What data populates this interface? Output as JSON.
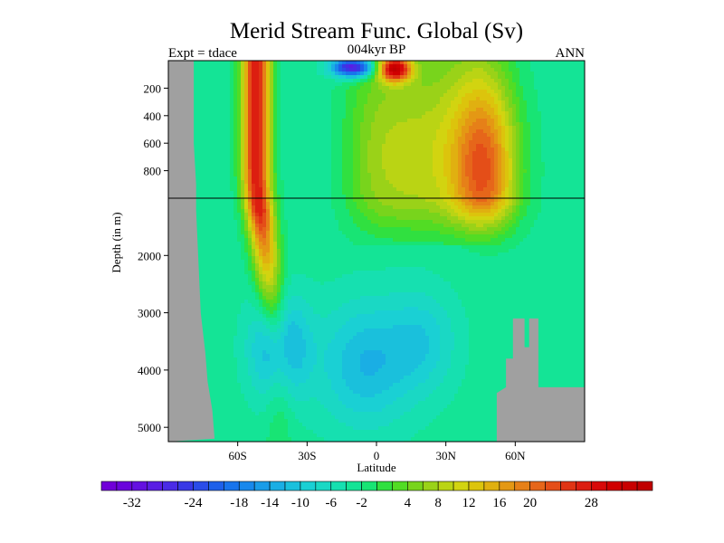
{
  "chart_data": {
    "type": "heatmap",
    "title": "Merid Stream Func. Global (Sv)",
    "left_label": "Expt = tdace",
    "center_label": "004kyr BP",
    "right_label": "ANN",
    "xlabel": "Latitude",
    "ylabel": "Depth (in m)",
    "xlim": [
      -90,
      90
    ],
    "x_ticks": [
      {
        "value": -60,
        "label": "60S"
      },
      {
        "value": -30,
        "label": "30S"
      },
      {
        "value": 0,
        "label": "0"
      },
      {
        "value": 30,
        "label": "30N"
      },
      {
        "value": 60,
        "label": "60N"
      }
    ],
    "y_axis": {
      "upper_range_m": [
        0,
        1000
      ],
      "lower_range_m": [
        1000,
        5250
      ],
      "upper_ticks": [
        200,
        400,
        600,
        800
      ],
      "lower_ticks": [
        2000,
        3000,
        4000,
        5000
      ]
    },
    "colorbar": {
      "min": -36,
      "max": 36,
      "step": 2,
      "tick_labels": [
        "-32",
        "-24",
        "-18",
        "-14",
        "-10",
        "-6",
        "-2",
        "4",
        "8",
        "12",
        "16",
        "20",
        "28"
      ],
      "tick_values": [
        -32,
        -24,
        -18,
        -14,
        -10,
        -6,
        -2,
        4,
        8,
        12,
        16,
        20,
        28
      ],
      "colors": [
        "#7000d8",
        "#6a05dc",
        "#6410e0",
        "#5a1ee4",
        "#4a2be6",
        "#3838e6",
        "#2a4ce8",
        "#1e60ea",
        "#1874ec",
        "#1888ec",
        "#1a9ce8",
        "#1aaee4",
        "#1ac0dc",
        "#1ad0d4",
        "#1ad8c4",
        "#16e0b0",
        "#14e496",
        "#18e474",
        "#30e040",
        "#52dc24",
        "#78d41c",
        "#9ad218",
        "#bad414",
        "#d2d410",
        "#dcc40c",
        "#e0b010",
        "#e49814",
        "#e68018",
        "#e6661a",
        "#e44e18",
        "#e03414",
        "#dc1e10",
        "#d80a0a",
        "#d00000",
        "#c80000",
        "#c00000"
      ]
    },
    "features": {
      "antarctic_overturning_max_sv": 28,
      "antarctic_overturning_center": {
        "lat": -52,
        "depth_m": 500
      },
      "southern_surface_cell_min_sv": -32,
      "southern_surface_cell_center": {
        "lat": -10,
        "depth_m": 50
      },
      "northern_surface_cell_max_sv": 28,
      "northern_surface_cell_center": {
        "lat": 8,
        "depth_m": 60
      },
      "north_atlantic_cell_max_sv": 16,
      "north_atlantic_cell_center": {
        "lat": 48,
        "depth_m": 800
      },
      "abyssal_cell_min_sv": -16,
      "abyssal_cell_center": {
        "lat": -42,
        "depth_m": 3600
      },
      "background_sv": -3
    }
  }
}
